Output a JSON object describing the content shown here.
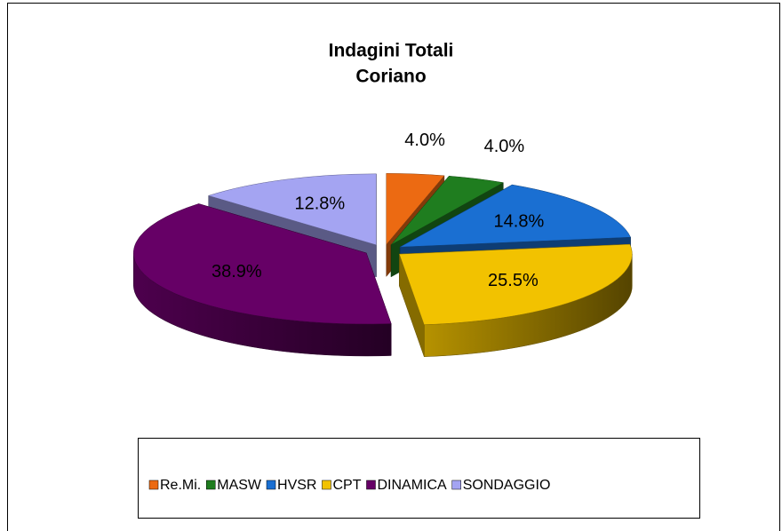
{
  "chart_data": {
    "type": "pie3d",
    "title": "Indagini Totali",
    "subtitle": "Coriano",
    "categories": [
      "Re.Mi.",
      "MASW",
      "HVSR",
      "CPT",
      "DINAMICA",
      "SONDAGGIO"
    ],
    "values": [
      4.0,
      4.0,
      14.8,
      25.5,
      38.9,
      12.8
    ],
    "value_labels": [
      "4.0%",
      "4.0%",
      "14.8%",
      "25.5%",
      "38.9%",
      "12.8%"
    ],
    "colors": [
      "#ec6a12",
      "#1f7d1f",
      "#1a6fd2",
      "#f2c200",
      "#660066",
      "#a4a4f2"
    ],
    "legend": "bottom"
  }
}
